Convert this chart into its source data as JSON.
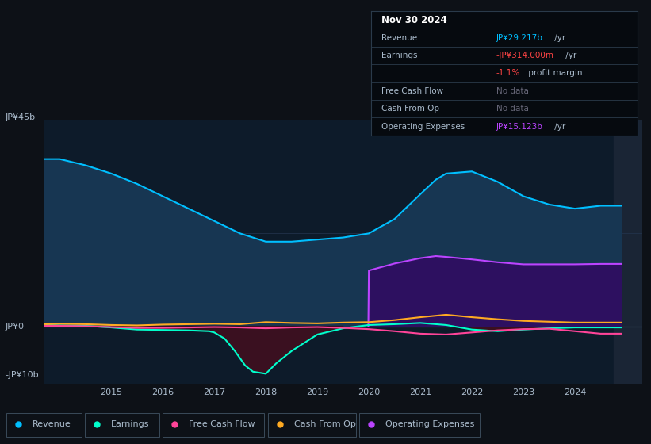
{
  "bg_color": "#0d1117",
  "plot_bg_color": "#0d1b2a",
  "text_color": "#aabbcc",
  "title_color": "#ffffff",
  "grid_color": "#243650",
  "revenue_color": "#00bfff",
  "earnings_color": "#00ffcc",
  "fcf_color": "#ff4499",
  "cashfromop_color": "#ffaa22",
  "opex_color": "#bb44ff",
  "revenue_fill": "#173652",
  "earnings_neg_fill": "#3a1020",
  "opex_fill": "#2d1060",
  "revenue_x": [
    2013.7,
    2014.0,
    2014.5,
    2015.0,
    2015.5,
    2016.0,
    2016.5,
    2017.0,
    2017.5,
    2018.0,
    2018.5,
    2019.0,
    2019.5,
    2020.0,
    2020.5,
    2021.0,
    2021.3,
    2021.5,
    2022.0,
    2022.5,
    2023.0,
    2023.5,
    2024.0,
    2024.5,
    2024.9
  ],
  "revenue_y": [
    40.5,
    40.5,
    39.0,
    37.0,
    34.5,
    31.5,
    28.5,
    25.5,
    22.5,
    20.5,
    20.5,
    21.0,
    21.5,
    22.5,
    26.0,
    32.0,
    35.5,
    37.0,
    37.5,
    35.0,
    31.5,
    29.5,
    28.5,
    29.2,
    29.2
  ],
  "earnings_x": [
    2013.7,
    2014.0,
    2014.5,
    2015.0,
    2015.5,
    2016.0,
    2016.5,
    2016.9,
    2017.0,
    2017.2,
    2017.4,
    2017.6,
    2017.75,
    2018.0,
    2018.2,
    2018.5,
    2019.0,
    2019.5,
    2020.0,
    2020.5,
    2021.0,
    2021.5,
    2022.0,
    2022.5,
    2023.0,
    2023.5,
    2024.0,
    2024.5,
    2024.9
  ],
  "earnings_y": [
    0.3,
    0.2,
    0.1,
    -0.3,
    -0.8,
    -0.9,
    -1.0,
    -1.2,
    -1.5,
    -3.0,
    -6.0,
    -9.5,
    -11.0,
    -11.5,
    -9.0,
    -6.0,
    -2.0,
    -0.5,
    0.3,
    0.5,
    0.8,
    0.3,
    -0.8,
    -1.2,
    -0.8,
    -0.5,
    -0.3,
    -0.3,
    -0.3
  ],
  "fcf_x": [
    2013.7,
    2014.0,
    2014.5,
    2015.0,
    2015.5,
    2016.0,
    2016.5,
    2017.0,
    2017.5,
    2018.0,
    2018.5,
    2019.0,
    2019.5,
    2020.0,
    2020.5,
    2021.0,
    2021.5,
    2022.0,
    2022.5,
    2023.0,
    2023.5,
    2024.0,
    2024.5,
    2024.9
  ],
  "fcf_y": [
    0.1,
    0.1,
    0.0,
    -0.2,
    -0.4,
    -0.4,
    -0.3,
    -0.2,
    -0.3,
    -0.5,
    -0.3,
    -0.2,
    -0.4,
    -0.7,
    -1.2,
    -1.8,
    -2.0,
    -1.5,
    -1.0,
    -0.7,
    -0.6,
    -1.2,
    -1.8,
    -1.8
  ],
  "cop_x": [
    2013.7,
    2014.0,
    2014.5,
    2015.0,
    2015.5,
    2016.0,
    2016.5,
    2017.0,
    2017.5,
    2018.0,
    2018.5,
    2019.0,
    2019.5,
    2020.0,
    2020.5,
    2021.0,
    2021.5,
    2022.0,
    2022.5,
    2023.0,
    2023.5,
    2024.0,
    2024.5,
    2024.9
  ],
  "cop_y": [
    0.5,
    0.6,
    0.5,
    0.3,
    0.2,
    0.4,
    0.5,
    0.6,
    0.5,
    1.0,
    0.8,
    0.7,
    0.9,
    1.0,
    1.5,
    2.2,
    2.8,
    2.2,
    1.7,
    1.3,
    1.1,
    0.9,
    0.9,
    0.9
  ],
  "opex_x": [
    2019.99,
    2020.0,
    2020.5,
    2021.0,
    2021.3,
    2021.5,
    2022.0,
    2022.5,
    2023.0,
    2023.5,
    2024.0,
    2024.5,
    2024.9
  ],
  "opex_y": [
    0.0,
    13.5,
    15.2,
    16.5,
    17.0,
    16.8,
    16.2,
    15.5,
    15.0,
    15.0,
    15.0,
    15.1,
    15.1
  ],
  "xlim": [
    2013.7,
    2025.3
  ],
  "ylim": [
    -14,
    50
  ],
  "shade_start": 2024.75,
  "xlabel_years": [
    2015,
    2016,
    2017,
    2018,
    2019,
    2020,
    2021,
    2022,
    2023,
    2024
  ],
  "legend_items": [
    "Revenue",
    "Earnings",
    "Free Cash Flow",
    "Cash From Op",
    "Operating Expenses"
  ],
  "legend_colors": [
    "#00bfff",
    "#00ffcc",
    "#ff4499",
    "#ffaa22",
    "#bb44ff"
  ],
  "tooltip_title": "Nov 30 2024",
  "tooltip_rows": [
    {
      "label": "Revenue",
      "value": "JP¥29.217b",
      "suffix": " /yr",
      "vcolor": "#00bfff",
      "gray": false
    },
    {
      "label": "Earnings",
      "value": "-JP¥314.000m",
      "suffix": " /yr",
      "vcolor": "#ff4444",
      "gray": false
    },
    {
      "label": "",
      "value": "-1.1%",
      "suffix": " profit margin",
      "vcolor": "#ff4444",
      "gray": false
    },
    {
      "label": "Free Cash Flow",
      "value": "No data",
      "suffix": "",
      "vcolor": "#666677",
      "gray": true
    },
    {
      "label": "Cash From Op",
      "value": "No data",
      "suffix": "",
      "vcolor": "#666677",
      "gray": true
    },
    {
      "label": "Operating Expenses",
      "value": "JP¥15.123b",
      "suffix": " /yr",
      "vcolor": "#bb44ff",
      "gray": false
    }
  ]
}
